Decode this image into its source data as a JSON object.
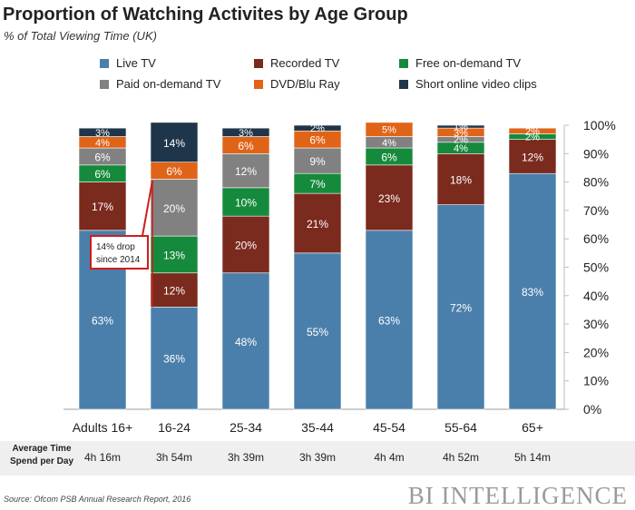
{
  "title": "Proportion of Watching Activites by Age Group",
  "subtitle": "% of Total Viewing Time (UK)",
  "footer": {
    "label": "Average Time Spend per Day",
    "values": [
      "4h 16m",
      "3h 54m",
      "3h 39m",
      "3h 39m",
      "4h 4m",
      "4h 52m",
      "5h 14m"
    ]
  },
  "source": "Source: Ofcom PSB Annual Research Report, 2016",
  "brand": "BI INTELLIGENCE",
  "annotation": {
    "text_line1": "14% drop",
    "text_line2": "since 2014",
    "category": "16-24",
    "series": "Live TV",
    "color": "#d01c1c"
  },
  "chart_data": {
    "type": "bar",
    "stacked": true,
    "title": "Proportion of Watching Activites by Age Group",
    "subtitle": "% of Total Viewing Time (UK)",
    "categories": [
      "Adults 16+",
      "16-24",
      "25-34",
      "35-44",
      "45-54",
      "55-64",
      "65+"
    ],
    "ylim": [
      0,
      100
    ],
    "yticks": [
      "0%",
      "10%",
      "20%",
      "30%",
      "40%",
      "50%",
      "60%",
      "70%",
      "80%",
      "90%",
      "100%"
    ],
    "y_axis_side": "right",
    "legend_position": "top",
    "series": [
      {
        "name": "Live TV",
        "color": "#4a7fab",
        "values": [
          63,
          36,
          48,
          55,
          63,
          72,
          83
        ],
        "labels": [
          "63%",
          "36%",
          "48%",
          "55%",
          "63%",
          "72%",
          "83%"
        ]
      },
      {
        "name": "Recorded TV",
        "color": "#7b2a1e",
        "values": [
          17,
          12,
          20,
          21,
          23,
          18,
          12
        ],
        "labels": [
          "17%",
          "12%",
          "20%",
          "21%",
          "23%",
          "18%",
          "12%"
        ]
      },
      {
        "name": "Free on-demand TV",
        "color": "#168a3c",
        "values": [
          6,
          13,
          10,
          7,
          6,
          4,
          2
        ],
        "labels": [
          "6%",
          "13%",
          "10%",
          "7%",
          "6%",
          "4%",
          "2%"
        ]
      },
      {
        "name": "Paid on-demand TV",
        "color": "#818181",
        "values": [
          6,
          20,
          12,
          9,
          4,
          2,
          0
        ],
        "labels": [
          "6%",
          "20%",
          "12%",
          "9%",
          "4%",
          "2%",
          ""
        ]
      },
      {
        "name": "DVD/Blu Ray",
        "color": "#e06418",
        "values": [
          4,
          6,
          6,
          6,
          5,
          3,
          2
        ],
        "labels": [
          "4%",
          "6%",
          "6%",
          "6%",
          "5%",
          "3%",
          "2%"
        ]
      },
      {
        "name": "Short online video clips",
        "color": "#1f3549",
        "values": [
          3,
          14,
          3,
          2,
          0,
          1,
          0
        ],
        "labels": [
          "3%",
          "14%",
          "3%",
          "2%",
          "",
          "1%",
          ""
        ]
      }
    ]
  }
}
